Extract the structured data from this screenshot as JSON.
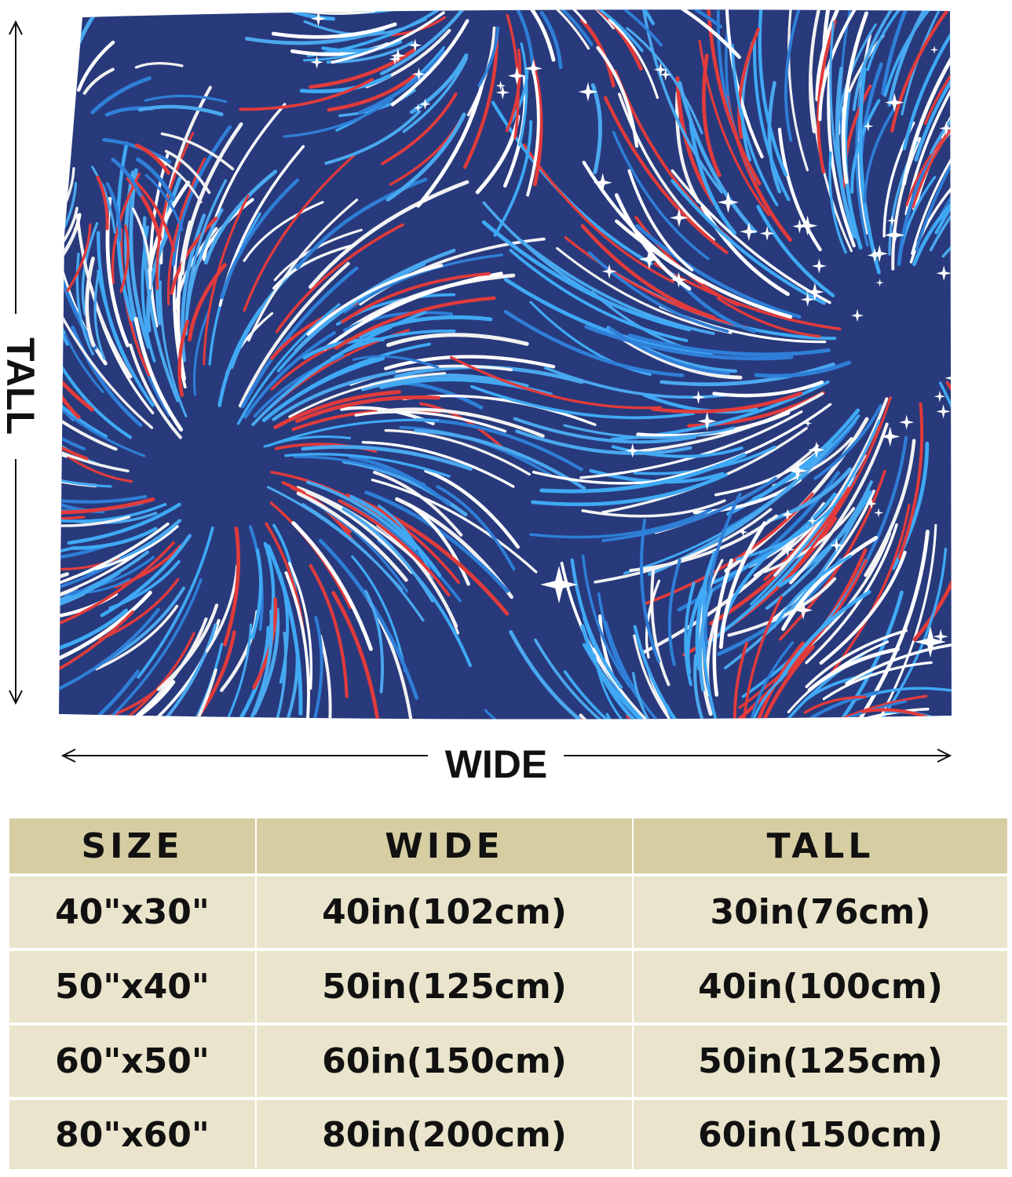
{
  "labels": {
    "tall": "TALL",
    "wide": "WIDE"
  },
  "table": {
    "header": [
      "SIZE",
      "WIDE",
      "TALL"
    ],
    "rows": [
      [
        "40\"x30\"",
        "40in(102cm)",
        "30in(76cm)"
      ],
      [
        "50\"x40\"",
        "50in(125cm)",
        "40in(100cm)"
      ],
      [
        "60\"x50\"",
        "60in(150cm)",
        "50in(125cm)"
      ],
      [
        "80\"x60\"",
        "80in(200cm)",
        "60in(150cm)"
      ]
    ]
  }
}
